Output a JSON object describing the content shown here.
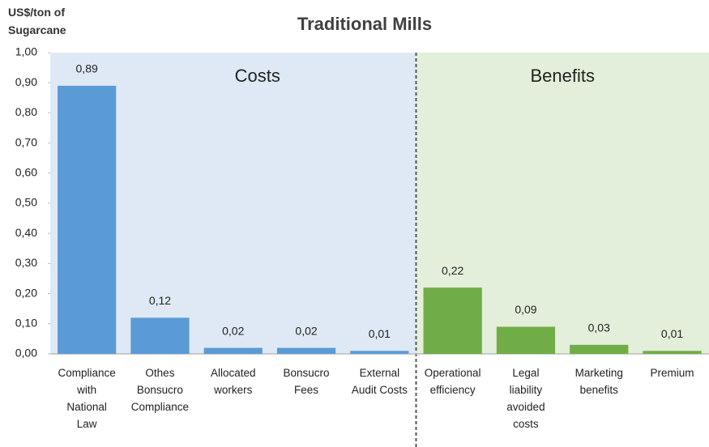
{
  "chart_data": {
    "type": "bar",
    "title": "Traditional Mills",
    "y_label": "US$/ton of\nSugarcane",
    "categories": [
      "Compliance\nwith\nNational\nLaw",
      "Othes\nBonsucro\nCompliance",
      "Allocated\nworkers",
      "Bonsucro\nFees",
      "External\nAudit Costs",
      "Operational\nefficiency",
      "Legal\nliability\navoided\ncosts",
      "Marketing\nbenefits",
      "Premium"
    ],
    "values": [
      0.89,
      0.12,
      0.02,
      0.02,
      0.01,
      0.22,
      0.09,
      0.03,
      0.01
    ],
    "value_labels": [
      "0,89",
      "0,12",
      "0,02",
      "0,02",
      "0,01",
      "0,22",
      "0,09",
      "0,03",
      "0,01"
    ],
    "colors": [
      "#5b9bd5",
      "#5b9bd5",
      "#5b9bd5",
      "#5b9bd5",
      "#5b9bd5",
      "#70ad47",
      "#70ad47",
      "#70ad47",
      "#70ad47"
    ],
    "annotations": [
      "Costs",
      "Benefits"
    ],
    "ylim": [
      0,
      1
    ],
    "yticks": [
      {
        "value": 0,
        "label": "0,00"
      },
      {
        "value": 0.1,
        "label": "0,10"
      },
      {
        "value": 0.2,
        "label": "0,20"
      },
      {
        "value": 0.3,
        "label": "0,30"
      },
      {
        "value": 0.4,
        "label": "0,40"
      },
      {
        "value": 0.5,
        "label": "0,50"
      },
      {
        "value": 0.6,
        "label": "0,60"
      },
      {
        "value": 0.7,
        "label": "0,70"
      },
      {
        "value": 0.8,
        "label": "0,80"
      },
      {
        "value": 0.9,
        "label": "0,90"
      },
      {
        "value": 1,
        "label": "1,00"
      }
    ],
    "grid": false
  }
}
